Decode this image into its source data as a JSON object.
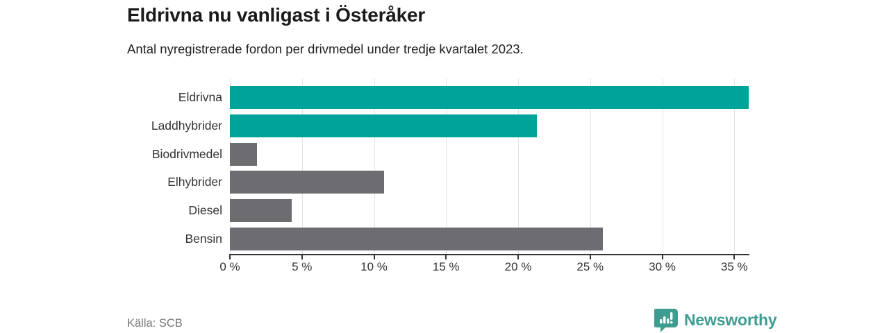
{
  "header": {
    "title": "Eldrivna nu vanligast i Österåker",
    "subtitle": "Antal nyregistrerade fordon per drivmedel under tredje kvartalet 2023."
  },
  "chart_data": {
    "type": "bar",
    "orientation": "horizontal",
    "title": "Eldrivna nu vanligast i Österåker",
    "xlabel": "",
    "ylabel": "",
    "unit": "%",
    "categories": [
      "Eldrivna",
      "Laddhybrider",
      "Biodrivmedel",
      "Elhybrider",
      "Diesel",
      "Bensin"
    ],
    "values": [
      36.0,
      21.3,
      1.9,
      10.7,
      4.3,
      25.9
    ],
    "xlim": [
      0,
      36
    ],
    "x_ticks": [
      0,
      5,
      10,
      15,
      20,
      25,
      30,
      35
    ],
    "x_tick_labels": [
      "0 %",
      "5 %",
      "10 %",
      "15 %",
      "20 %",
      "25 %",
      "30 %",
      "35 %"
    ],
    "bar_colors": [
      "#00a39a",
      "#00a39a",
      "#6c6c71",
      "#6c6c71",
      "#6c6c71",
      "#6c6c71"
    ],
    "grid": true,
    "legend_position": "none"
  },
  "footer": {
    "source": "Källa: SCB",
    "brand_name": "Newsworthy"
  },
  "colors": {
    "accent_teal": "#00a39a",
    "bar_gray": "#6c6c71",
    "logo_teal": "#3f9c91",
    "gridline": "#e3e3e3",
    "axis": "#333333"
  },
  "icons": {
    "logo": "newsworthy-speech-bubble-chart-icon"
  }
}
